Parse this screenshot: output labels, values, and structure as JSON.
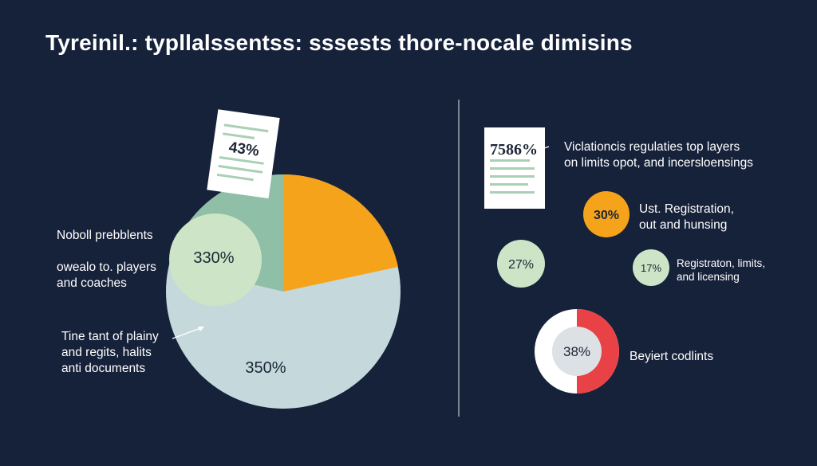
{
  "title": "Tyreinil.: typllalssentss: sssests thore-nocale dimisins",
  "colors": {
    "background": "#16213a",
    "pie_light_blue": "#c5d9dc",
    "pie_green": "#8fbfa6",
    "pie_orange": "#f5a31b",
    "bubble_green": "#cde4c6",
    "badge_orange": "#f5a31b",
    "ring_red": "#e84246",
    "ring_center": "#dde0e4"
  },
  "left": {
    "labels": [
      {
        "lines": [
          "Noboll prebblents"
        ]
      },
      {
        "lines": [
          "owealo to. players",
          "and coaches"
        ]
      },
      {
        "lines": [
          "Tine tant of plainy",
          "and regits, halits",
          "anti documents"
        ]
      }
    ],
    "doc_value": "43%",
    "bubble_value": "330%",
    "pie_value": "350%"
  },
  "right": {
    "doc_value": "7586%",
    "doc_label": [
      "Viclationcis regulaties top layers",
      "on limits opot, and incersloensings"
    ],
    "orange_badge": "30%",
    "orange_label": [
      "Ust. Registration,",
      "out and hunsing"
    ],
    "green_badge": "27%",
    "small_badge": "17%",
    "small_label": [
      "Registraton, limits,",
      "and licensing"
    ],
    "ring_value": "38%",
    "ring_label": "Beyiert codlints"
  },
  "chart_data": [
    {
      "type": "pie",
      "values_shown": [
        "43%",
        "330%",
        "350%"
      ],
      "legend": [
        "Noboll prebblents",
        "owealo to. players and coaches",
        "Tine tant of plainy and regits, halits anti documents"
      ]
    },
    {
      "type": "bubble",
      "items": [
        {
          "value": "7586%",
          "label": "Viclationcis regulaties top layers on limits opot, and incersloensings"
        },
        {
          "value": "30%",
          "label": "Ust. Registration, out and hunsing"
        },
        {
          "value": "27%"
        },
        {
          "value": "17%",
          "label": "Registraton, limits, and licensing"
        },
        {
          "value": "38%",
          "label": "Beyiert codlints"
        }
      ]
    }
  ]
}
